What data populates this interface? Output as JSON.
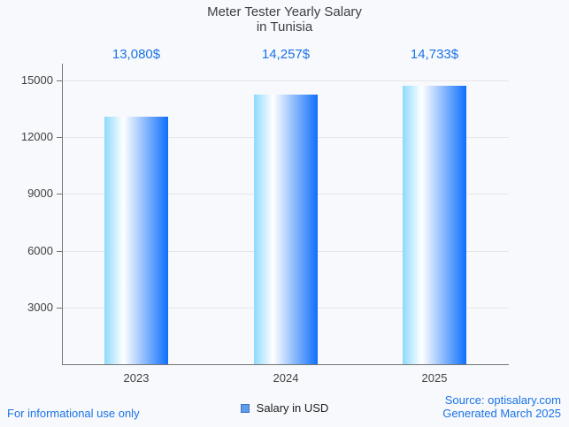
{
  "title": {
    "line1": "Meter Tester Yearly Salary",
    "line2": "in Tunisia"
  },
  "chart_data": {
    "type": "bar",
    "title": "Meter Tester Yearly Salary in Tunisia",
    "categories": [
      "2023",
      "2024",
      "2025"
    ],
    "values": [
      13080,
      14257,
      14733
    ],
    "value_labels": [
      "13,080$",
      "14,257$",
      "14,733$"
    ],
    "series": [
      {
        "name": "Salary in USD",
        "values": [
          13080,
          14257,
          14733
        ]
      }
    ],
    "xlabel": "",
    "ylabel": "",
    "ylim": [
      0,
      15000
    ],
    "yticks": [
      3000,
      6000,
      9000,
      12000,
      15000
    ],
    "grid": true,
    "legend_position": "bottom",
    "bar_gradient": [
      "#8edafc",
      "#ffffff",
      "#0f6ffb"
    ]
  },
  "legend": {
    "label": "Salary in USD"
  },
  "footer": {
    "left": "For informational use only",
    "source": "Source: optisalary.com",
    "generated": "Generated March 2025"
  },
  "colors": {
    "accent_blue": "#1a73e8",
    "title_text": "#3c4043",
    "axis_text": "#424242",
    "gridline": "#e6e6e6",
    "axis_line": "#757575",
    "background": "#f8f9fc",
    "legend_marker_fill": "#5f9ce8",
    "legend_marker_border": "#3f72c8"
  }
}
